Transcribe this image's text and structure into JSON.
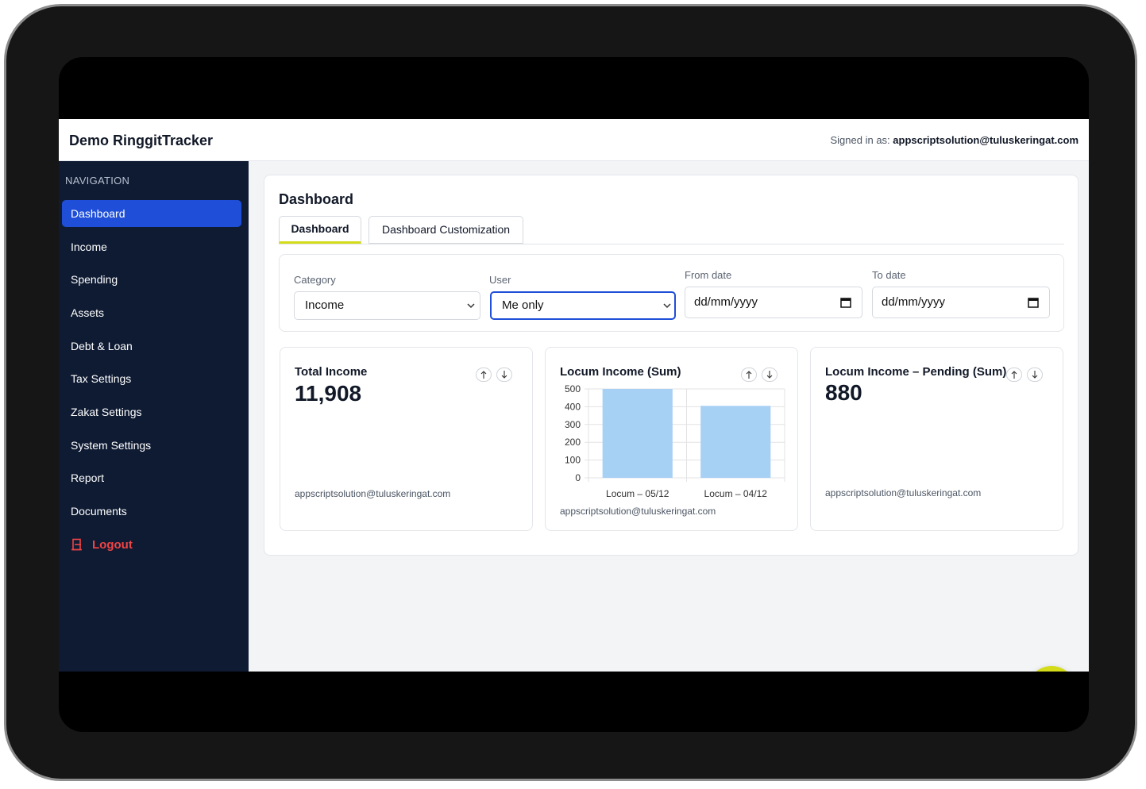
{
  "header": {
    "title": "Demo RinggitTracker",
    "signed_in_label": "Signed in as:",
    "signed_in_email": "appscriptsolution@tuluskeringat.com"
  },
  "sidebar": {
    "heading": "NAVIGATION",
    "items": [
      "Dashboard",
      "Income",
      "Spending",
      "Assets",
      "Debt & Loan",
      "Tax Settings",
      "Zakat Settings",
      "System Settings",
      "Report",
      "Documents"
    ],
    "logout": "Logout"
  },
  "main": {
    "title": "Dashboard",
    "tabs": [
      "Dashboard",
      "Dashboard Customization"
    ]
  },
  "filters": [
    {
      "label": "Category",
      "value": "Income"
    },
    {
      "label": "User",
      "value": "Me only"
    },
    {
      "label": "From date",
      "value": "dd/mm/yyyy"
    },
    {
      "label": "To date",
      "value": "dd/mm/yyyy"
    }
  ],
  "widgets": [
    {
      "title": "Total Income",
      "value": "11,908",
      "footer": "appscriptsolution@tuluskeringat.com"
    },
    {
      "footer": "appscriptsolution@tuluskeringat.com"
    },
    {
      "title": "Locum Income – Pending (Sum)",
      "value": "880",
      "footer": "appscriptsolution@tuluskeringat.com"
    }
  ],
  "chart_data": {
    "type": "bar",
    "title": "Locum Income (Sum)",
    "categories": [
      "Locum – 05/12",
      "Locum – 04/12"
    ],
    "values": [
      500,
      405
    ],
    "color": "#a7d0f5",
    "ylim": [
      0,
      500
    ],
    "yticks": [
      0,
      100,
      200,
      300,
      400,
      500
    ],
    "grid": true
  }
}
